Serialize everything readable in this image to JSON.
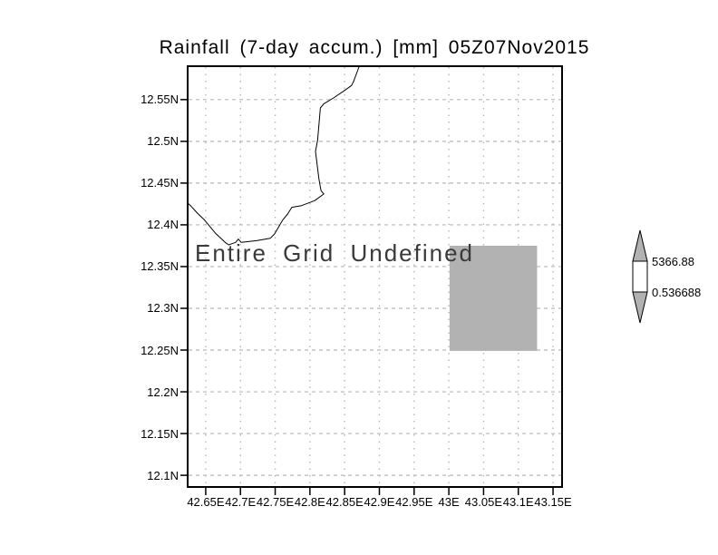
{
  "title": "Rainfall (7-day accum.) [mm] 05Z07Nov2015",
  "overlay_message": "Entire Grid Undefined",
  "colorbar": {
    "max_label": "5366.88",
    "min_label": "0.536688",
    "triangle_color": "#b2b2b2",
    "box_color": "#ffffff",
    "outline_color": "#000000"
  },
  "colors": {
    "background": "#ffffff",
    "frame": "#000000",
    "grid": "#b8b8b8",
    "coastline": "#000000",
    "shaded_region": "#b2b2b2",
    "text": "#000000",
    "overlay_text": "#3a3a3a"
  },
  "chart_data": {
    "type": "heatmap",
    "title": "Rainfall (7-day accum.) [mm] 05Z07Nov2015",
    "xlabel": "",
    "ylabel": "",
    "xlim": [
      42.624,
      43.163
    ],
    "ylim": [
      12.086,
      12.59
    ],
    "grid": true,
    "x_ticks": {
      "values": [
        42.65,
        42.7,
        42.75,
        42.8,
        42.85,
        42.9,
        42.95,
        43.0,
        43.05,
        43.1,
        43.15
      ],
      "labels": [
        "42.65E",
        "42.7E",
        "42.75E",
        "42.8E",
        "42.85E",
        "42.9E",
        "42.95E",
        "43E",
        "43.05E",
        "43.1E",
        "43.15E"
      ]
    },
    "y_ticks": {
      "values": [
        12.55,
        12.5,
        12.45,
        12.4,
        12.35,
        12.3,
        12.25,
        12.2,
        12.15,
        12.1
      ],
      "labels": [
        "12.55N",
        "12.5N",
        "12.45N",
        "12.4N",
        "12.35N",
        "12.3N",
        "12.25N",
        "12.2N",
        "12.15N",
        "12.1N"
      ]
    },
    "status": "Entire Grid Undefined",
    "colorbar": {
      "max": 5366.88,
      "min": 0.536688,
      "max_label": "5366.88",
      "min_label": "0.536688",
      "legend_position": "right"
    },
    "shaded_region": {
      "lon_min": 43.001,
      "lon_max": 43.127,
      "lat_min": 12.249,
      "lat_max": 12.375,
      "color": "#b2b2b2"
    },
    "coastline_lonlat": [
      [
        42.871,
        12.59
      ],
      [
        42.863,
        12.572
      ],
      [
        42.86,
        12.567
      ],
      [
        42.85,
        12.561
      ],
      [
        42.834,
        12.552
      ],
      [
        42.82,
        12.545
      ],
      [
        42.815,
        12.54
      ],
      [
        42.811,
        12.501
      ],
      [
        42.808,
        12.488
      ],
      [
        42.811,
        12.468
      ],
      [
        42.813,
        12.455
      ],
      [
        42.816,
        12.441
      ],
      [
        42.82,
        12.437
      ],
      [
        42.807,
        12.429
      ],
      [
        42.788,
        12.423
      ],
      [
        42.774,
        12.421
      ],
      [
        42.768,
        12.413
      ],
      [
        42.761,
        12.406
      ],
      [
        42.749,
        12.389
      ],
      [
        42.743,
        12.384
      ],
      [
        42.723,
        12.381
      ],
      [
        42.701,
        12.379
      ],
      [
        42.697,
        12.383
      ],
      [
        42.693,
        12.379
      ],
      [
        42.683,
        12.376
      ],
      [
        42.678,
        12.379
      ],
      [
        42.664,
        12.39
      ],
      [
        42.654,
        12.4
      ],
      [
        42.648,
        12.406
      ],
      [
        42.638,
        12.414
      ],
      [
        42.628,
        12.423
      ],
      [
        42.623,
        12.427
      ]
    ]
  }
}
